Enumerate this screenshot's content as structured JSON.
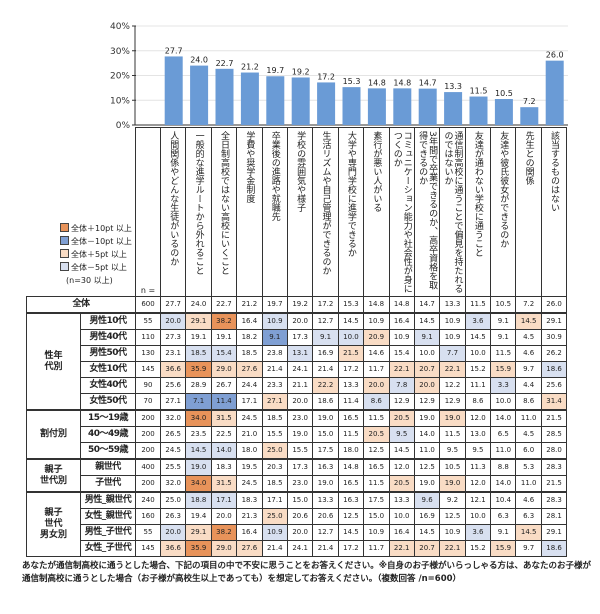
{
  "chart_data": {
    "type": "bar",
    "ylim": [
      0,
      40
    ],
    "yticks": [
      "0%",
      "10%",
      "20%",
      "30%",
      "40%"
    ],
    "grid": true,
    "categories": [
      "人間関係やどんな生徒がいるのか",
      "一般的な進学ルートから外れること",
      "全日制高校ではない高校にいくこと",
      "学費や奨学金制度",
      "卒業後の進路や就職先",
      "学校の雰囲気や様子",
      "生活リズムや自己管理ができるのか",
      "大学や専門学校に進学できるか",
      "素行が悪い人がいる",
      "コミュニケーション能力や社会性が身につくのか",
      "3年間で卒業できるのか、高卒資格を取得できるのか",
      "通信制高校に通うことで偏見を持たれるのではないか",
      "友達が通わない学校に通うこと",
      "友達や彼氏彼女ができるのか",
      "先生との関係",
      "該当するものはない"
    ],
    "values": [
      27.7,
      24.0,
      22.7,
      21.2,
      19.7,
      19.2,
      17.2,
      15.3,
      14.8,
      14.8,
      14.7,
      13.3,
      11.5,
      10.5,
      7.2,
      26.0
    ],
    "bar_color": "#6a9bd6"
  },
  "legend": {
    "items": [
      {
        "label": "全体＋10pt 以上",
        "color": "#e8935a"
      },
      {
        "label": "全体－10pt 以上",
        "color": "#7f9fd3"
      },
      {
        "label": "全体＋5pt 以上",
        "color": "#f9dcc5"
      },
      {
        "label": "全体－5pt 以上",
        "color": "#d8e0f0"
      }
    ],
    "note": "(n=30 以上)"
  },
  "table": {
    "n_header": "n =",
    "total": {
      "label": "全体",
      "n": "600",
      "values": [
        27.7,
        24.0,
        22.7,
        21.2,
        19.7,
        19.2,
        17.2,
        15.3,
        14.8,
        14.8,
        14.7,
        13.3,
        11.5,
        10.5,
        7.2,
        26.0
      ]
    },
    "groups": [
      {
        "label": "性年\n代別",
        "rows": [
          {
            "label": "男性10代",
            "n": "55",
            "values": [
              20.0,
              29.1,
              38.2,
              16.4,
              10.9,
              20.0,
              12.7,
              14.5,
              10.9,
              16.4,
              14.5,
              10.9,
              3.6,
              9.1,
              14.5,
              29.1
            ]
          },
          {
            "label": "男性40代",
            "n": "110",
            "values": [
              27.3,
              19.1,
              19.1,
              18.2,
              9.1,
              17.3,
              9.1,
              10.0,
              20.9,
              10.9,
              9.1,
              10.9,
              14.5,
              9.1,
              4.5,
              30.9
            ]
          },
          {
            "label": "男性50代",
            "n": "130",
            "values": [
              23.1,
              18.5,
              15.4,
              18.5,
              23.8,
              13.1,
              16.9,
              21.5,
              14.6,
              15.4,
              10.0,
              7.7,
              10.0,
              11.5,
              4.6,
              26.2
            ]
          },
          {
            "label": "女性10代",
            "n": "145",
            "values": [
              36.6,
              35.9,
              29.0,
              27.6,
              21.4,
              24.1,
              21.4,
              17.2,
              11.7,
              22.1,
              20.7,
              22.1,
              15.2,
              15.9,
              9.7,
              18.6
            ]
          },
          {
            "label": "女性40代",
            "n": "90",
            "values": [
              25.6,
              28.9,
              26.7,
              24.4,
              23.3,
              21.1,
              22.2,
              13.3,
              20.0,
              7.8,
              20.0,
              12.2,
              11.1,
              3.3,
              4.4,
              25.6
            ]
          },
          {
            "label": "女性50代",
            "n": "70",
            "values": [
              27.1,
              7.1,
              11.4,
              17.1,
              27.1,
              20.0,
              18.6,
              11.4,
              8.6,
              12.9,
              12.9,
              12.9,
              8.6,
              10.0,
              8.6,
              31.4
            ]
          }
        ]
      },
      {
        "label": "割付別",
        "rows": [
          {
            "label": "15〜19歳",
            "n": "200",
            "values": [
              32.0,
              34.0,
              31.5,
              24.5,
              18.5,
              23.0,
              19.0,
              16.5,
              11.5,
              20.5,
              19.0,
              19.0,
              12.0,
              14.0,
              11.0,
              21.5
            ]
          },
          {
            "label": "40〜49歳",
            "n": "200",
            "values": [
              26.5,
              23.5,
              22.5,
              21.0,
              15.5,
              19.0,
              15.0,
              11.5,
              20.5,
              9.5,
              14.0,
              11.5,
              13.0,
              6.5,
              4.5,
              28.5
            ]
          },
          {
            "label": "50〜59歳",
            "n": "200",
            "values": [
              24.5,
              14.5,
              14.0,
              18.0,
              25.0,
              15.5,
              17.5,
              18.0,
              12.5,
              14.5,
              11.0,
              9.5,
              9.5,
              11.0,
              6.0,
              28.0
            ]
          }
        ]
      },
      {
        "label": "親子\n世代別",
        "rows": [
          {
            "label": "親世代",
            "n": "400",
            "values": [
              25.5,
              19.0,
              18.3,
              19.5,
              20.3,
              17.3,
              16.3,
              14.8,
              16.5,
              12.0,
              12.5,
              10.5,
              11.3,
              8.8,
              5.3,
              28.3
            ]
          },
          {
            "label": "子世代",
            "n": "200",
            "values": [
              32.0,
              34.0,
              31.5,
              24.5,
              18.5,
              23.0,
              19.0,
              16.5,
              11.5,
              20.5,
              19.0,
              19.0,
              12.0,
              14.0,
              11.0,
              21.5
            ]
          }
        ]
      },
      {
        "label": "親子\n世代\n男女別",
        "rows": [
          {
            "label": "男性_親世代",
            "n": "240",
            "values": [
              25.0,
              18.8,
              17.1,
              18.3,
              17.1,
              15.0,
              13.3,
              16.3,
              17.5,
              13.3,
              9.6,
              9.2,
              12.1,
              10.4,
              4.6,
              28.3
            ]
          },
          {
            "label": "女性_親世代",
            "n": "160",
            "values": [
              26.3,
              19.4,
              20.0,
              21.3,
              25.0,
              20.6,
              20.6,
              12.5,
              15.0,
              10.0,
              16.9,
              12.5,
              10.0,
              6.3,
              6.3,
              28.1
            ]
          },
          {
            "label": "男性_子世代",
            "n": "55",
            "values": [
              20.0,
              29.1,
              38.2,
              16.4,
              10.9,
              20.0,
              12.7,
              14.5,
              10.9,
              16.4,
              14.5,
              10.9,
              3.6,
              9.1,
              14.5,
              29.1
            ]
          },
          {
            "label": "女性_子世代",
            "n": "145",
            "values": [
              36.6,
              35.9,
              29.0,
              27.6,
              21.4,
              24.1,
              21.4,
              17.2,
              11.7,
              22.1,
              20.7,
              22.1,
              15.2,
              15.9,
              9.7,
              18.6
            ]
          }
        ]
      }
    ]
  },
  "footnote": "あなたが通信制高校に通うとした場合、下記の項目の中で不安に思うことをお答えください。※自身のお子様がいらっしゃる方は、あなたのお子様が通信制高校に通うとした場合（お子様が高校生以上であっても）を想定してお答えください。（複数回答 /n=600）"
}
